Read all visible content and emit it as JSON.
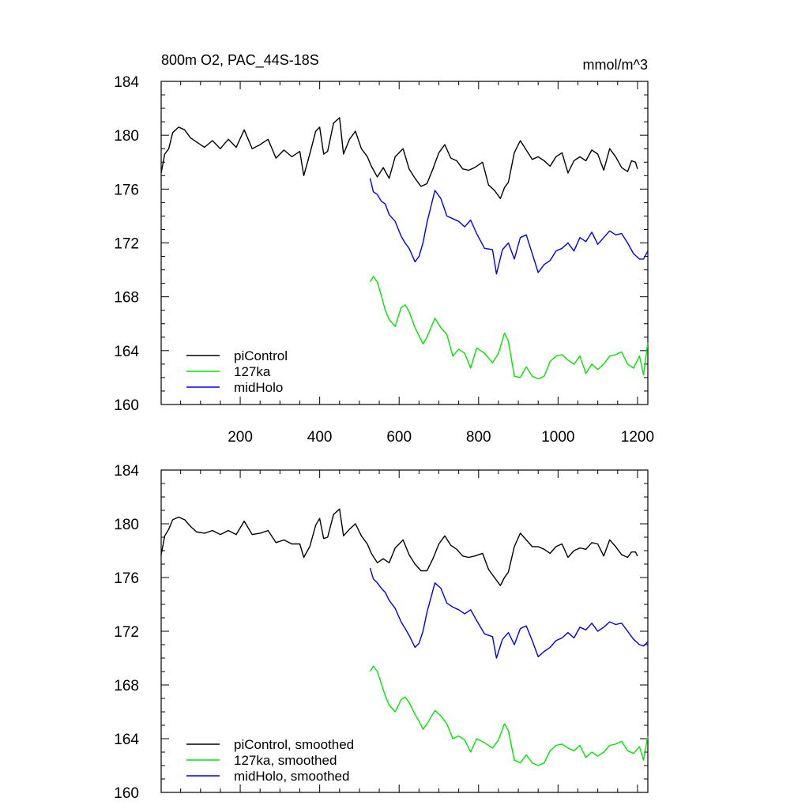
{
  "figure": {
    "units": "mmol/m^3"
  },
  "colors": {
    "piControl": "#000000",
    "127ka": "#00e600",
    "midHolo": "#0000e6"
  },
  "chart_data": [
    {
      "type": "line",
      "title": "800m O2, PAC_44S-18S",
      "units_label": "mmol/m^3",
      "xlim": [
        1,
        1226
      ],
      "ylim": [
        160,
        184
      ],
      "xticks": [
        200,
        400,
        600,
        800,
        1000,
        1200
      ],
      "xtick_labels": [
        "200",
        "400",
        "600",
        "800",
        "1000",
        "1200"
      ],
      "yticks": [
        160,
        164,
        168,
        172,
        176,
        180,
        184
      ],
      "ytick_labels": [
        "160",
        "164",
        "168",
        "172",
        "176",
        "180",
        "184"
      ],
      "legend_location": "bottom-left",
      "series": [
        {
          "name": "piControl",
          "color": "#000000",
          "x": [
            1,
            10,
            20,
            30,
            45,
            60,
            75,
            90,
            110,
            130,
            150,
            170,
            190,
            210,
            230,
            250,
            270,
            290,
            310,
            330,
            350,
            360,
            375,
            390,
            400,
            410,
            420,
            435,
            450,
            460,
            475,
            490,
            505,
            520,
            530,
            545,
            560,
            575,
            590,
            610,
            625,
            640,
            655,
            670,
            685,
            700,
            715,
            730,
            745,
            760,
            775,
            790,
            810,
            825,
            840,
            855,
            865,
            875,
            890,
            905,
            920,
            935,
            950,
            965,
            980,
            995,
            1010,
            1025,
            1040,
            1055,
            1070,
            1085,
            1100,
            1115,
            1130,
            1145,
            1160,
            1175,
            1185,
            1195,
            1200
          ],
          "values": [
            177.2,
            178.6,
            179.0,
            180.2,
            180.6,
            180.4,
            179.8,
            179.5,
            179.1,
            179.6,
            179.0,
            179.7,
            179.1,
            180.4,
            179.0,
            179.3,
            179.7,
            178.3,
            178.9,
            178.4,
            178.8,
            177.0,
            178.6,
            180.3,
            180.6,
            178.6,
            178.8,
            180.9,
            181.3,
            178.6,
            179.7,
            180.3,
            179.0,
            178.4,
            177.7,
            176.9,
            177.6,
            176.8,
            178.4,
            179.0,
            177.5,
            176.8,
            176.2,
            176.4,
            177.5,
            178.7,
            179.3,
            178.3,
            178.1,
            177.5,
            177.4,
            177.6,
            178.0,
            176.3,
            175.9,
            175.3,
            176.1,
            176.5,
            178.7,
            179.6,
            178.9,
            178.2,
            178.4,
            178.1,
            177.7,
            178.4,
            178.7,
            177.2,
            178.1,
            178.4,
            178.1,
            178.9,
            178.6,
            177.4,
            179.0,
            178.4,
            177.6,
            177.3,
            178.1,
            178.0,
            177.5
          ]
        },
        {
          "name": "127ka",
          "color": "#00e600",
          "x": [
            527,
            535,
            545,
            555,
            565,
            575,
            590,
            605,
            615,
            625,
            640,
            650,
            660,
            670,
            690,
            705,
            720,
            735,
            750,
            765,
            780,
            795,
            815,
            835,
            850,
            865,
            875,
            890,
            905,
            920,
            935,
            950,
            965,
            980,
            995,
            1010,
            1025,
            1040,
            1055,
            1070,
            1085,
            1100,
            1115,
            1130,
            1145,
            1160,
            1175,
            1190,
            1205,
            1215,
            1226
          ],
          "values": [
            169.1,
            169.5,
            169.1,
            168.1,
            167.0,
            166.3,
            165.8,
            167.2,
            167.4,
            166.9,
            165.7,
            165.1,
            164.5,
            165.0,
            166.4,
            165.7,
            165.2,
            163.6,
            164.1,
            163.8,
            162.7,
            164.2,
            163.8,
            163.1,
            163.8,
            165.3,
            164.7,
            162.1,
            162.0,
            162.8,
            162.1,
            161.9,
            162.1,
            163.2,
            163.6,
            163.7,
            163.3,
            163.0,
            163.6,
            162.3,
            163.0,
            162.6,
            163.0,
            163.6,
            163.7,
            163.9,
            163.0,
            162.7,
            163.6,
            162.2,
            164.6
          ]
        },
        {
          "name": "midHolo",
          "color": "#0000e6",
          "x": [
            527,
            535,
            545,
            555,
            565,
            575,
            590,
            605,
            615,
            625,
            640,
            650,
            660,
            670,
            690,
            705,
            720,
            735,
            750,
            765,
            780,
            795,
            815,
            835,
            845,
            860,
            875,
            890,
            905,
            920,
            935,
            950,
            965,
            980,
            995,
            1010,
            1025,
            1040,
            1055,
            1070,
            1085,
            1100,
            1115,
            1130,
            1145,
            1160,
            1175,
            1190,
            1205,
            1215,
            1226
          ],
          "values": [
            176.8,
            175.8,
            175.6,
            175.1,
            174.9,
            174.1,
            173.6,
            172.5,
            172.0,
            171.6,
            170.6,
            171.0,
            172.0,
            173.5,
            175.9,
            175.3,
            174.0,
            173.8,
            173.6,
            173.2,
            173.7,
            172.7,
            171.6,
            171.5,
            169.7,
            171.5,
            172.0,
            170.8,
            172.4,
            172.6,
            171.2,
            169.8,
            170.4,
            170.7,
            171.4,
            171.6,
            172.0,
            171.4,
            172.4,
            172.1,
            172.8,
            171.9,
            172.4,
            172.9,
            172.6,
            172.7,
            172.0,
            171.2,
            170.8,
            170.8,
            171.4
          ]
        }
      ],
      "legend": [
        "piControl",
        "127ka",
        "midHolo"
      ]
    },
    {
      "type": "line",
      "xlim": [
        1,
        1226
      ],
      "ylim": [
        160,
        184
      ],
      "xticks": [
        200,
        400,
        600,
        800,
        1000,
        1200
      ],
      "yticks": [
        160,
        164,
        168,
        172,
        176,
        180,
        184
      ],
      "ytick_labels": [
        "160",
        "164",
        "168",
        "172",
        "176",
        "180",
        "184"
      ],
      "legend_location": "bottom-left",
      "series": [
        {
          "name": "piControl, smoothed",
          "color": "#000000",
          "x": [
            1,
            10,
            20,
            30,
            45,
            60,
            75,
            90,
            110,
            130,
            150,
            170,
            190,
            210,
            230,
            250,
            270,
            290,
            310,
            330,
            350,
            360,
            375,
            390,
            400,
            410,
            420,
            435,
            450,
            460,
            475,
            490,
            505,
            520,
            530,
            545,
            560,
            575,
            590,
            610,
            625,
            640,
            655,
            670,
            685,
            700,
            715,
            730,
            745,
            760,
            775,
            790,
            810,
            825,
            840,
            855,
            865,
            875,
            890,
            905,
            920,
            935,
            950,
            965,
            980,
            995,
            1010,
            1025,
            1040,
            1055,
            1070,
            1085,
            1100,
            1115,
            1130,
            1145,
            1160,
            1175,
            1185,
            1195,
            1200
          ],
          "values": [
            177.7,
            179.1,
            179.6,
            180.3,
            180.5,
            180.3,
            179.8,
            179.4,
            179.3,
            179.5,
            179.2,
            179.5,
            179.2,
            180.2,
            179.2,
            179.3,
            179.5,
            178.6,
            178.8,
            178.5,
            178.5,
            177.5,
            178.3,
            179.9,
            180.4,
            178.9,
            179.0,
            180.7,
            181.1,
            179.1,
            179.6,
            180.0,
            179.1,
            178.5,
            177.8,
            177.1,
            177.4,
            177.1,
            178.2,
            178.8,
            177.7,
            177.0,
            176.5,
            176.5,
            177.4,
            178.5,
            179.1,
            178.4,
            178.1,
            177.6,
            177.5,
            177.6,
            177.8,
            176.6,
            176.0,
            175.4,
            176.0,
            176.4,
            178.3,
            179.3,
            178.8,
            178.3,
            178.3,
            178.1,
            177.8,
            178.3,
            178.5,
            177.5,
            178.0,
            178.2,
            178.1,
            178.6,
            178.5,
            177.6,
            178.8,
            178.3,
            177.7,
            177.5,
            177.9,
            177.9,
            177.6
          ]
        },
        {
          "name": "127ka, smoothed",
          "color": "#00e600",
          "x": [
            527,
            535,
            545,
            555,
            565,
            575,
            590,
            605,
            615,
            625,
            640,
            650,
            660,
            670,
            690,
            705,
            720,
            735,
            750,
            765,
            780,
            795,
            815,
            835,
            850,
            865,
            875,
            890,
            905,
            920,
            935,
            950,
            965,
            980,
            995,
            1010,
            1025,
            1040,
            1055,
            1070,
            1085,
            1100,
            1115,
            1130,
            1145,
            1160,
            1175,
            1190,
            1205,
            1215,
            1226
          ],
          "values": [
            169.0,
            169.4,
            169.0,
            168.1,
            167.2,
            166.5,
            166.0,
            166.9,
            167.1,
            166.7,
            165.8,
            165.3,
            164.7,
            165.1,
            166.1,
            165.7,
            165.1,
            164.0,
            164.2,
            163.9,
            163.0,
            164.0,
            163.7,
            163.3,
            163.9,
            165.1,
            164.6,
            162.4,
            162.2,
            162.8,
            162.2,
            162.0,
            162.2,
            163.1,
            163.5,
            163.6,
            163.3,
            163.1,
            163.5,
            162.6,
            163.0,
            162.7,
            163.0,
            163.5,
            163.6,
            163.8,
            163.1,
            162.9,
            163.4,
            162.4,
            164.2
          ]
        },
        {
          "name": "midHolo, smoothed",
          "color": "#0000e6",
          "x": [
            527,
            535,
            545,
            555,
            565,
            575,
            590,
            605,
            615,
            625,
            640,
            650,
            660,
            670,
            690,
            705,
            720,
            735,
            750,
            765,
            780,
            795,
            815,
            835,
            845,
            860,
            875,
            890,
            905,
            920,
            935,
            950,
            965,
            980,
            995,
            1010,
            1025,
            1040,
            1055,
            1070,
            1085,
            1100,
            1115,
            1130,
            1145,
            1160,
            1175,
            1190,
            1205,
            1215,
            1226
          ],
          "values": [
            176.7,
            175.9,
            175.6,
            175.2,
            174.9,
            174.3,
            173.7,
            172.7,
            172.2,
            171.7,
            170.8,
            171.1,
            172.0,
            173.4,
            175.6,
            175.2,
            174.1,
            173.8,
            173.6,
            173.3,
            173.6,
            172.8,
            171.8,
            171.6,
            170.0,
            171.4,
            171.9,
            171.0,
            172.2,
            172.4,
            171.3,
            170.1,
            170.5,
            170.8,
            171.3,
            171.5,
            171.9,
            171.5,
            172.3,
            172.1,
            172.6,
            172.0,
            172.3,
            172.7,
            172.5,
            172.6,
            172.0,
            171.4,
            171.0,
            170.9,
            171.2
          ]
        }
      ],
      "legend": [
        "piControl, smoothed",
        "127ka, smoothed",
        "midHolo, smoothed"
      ]
    }
  ]
}
